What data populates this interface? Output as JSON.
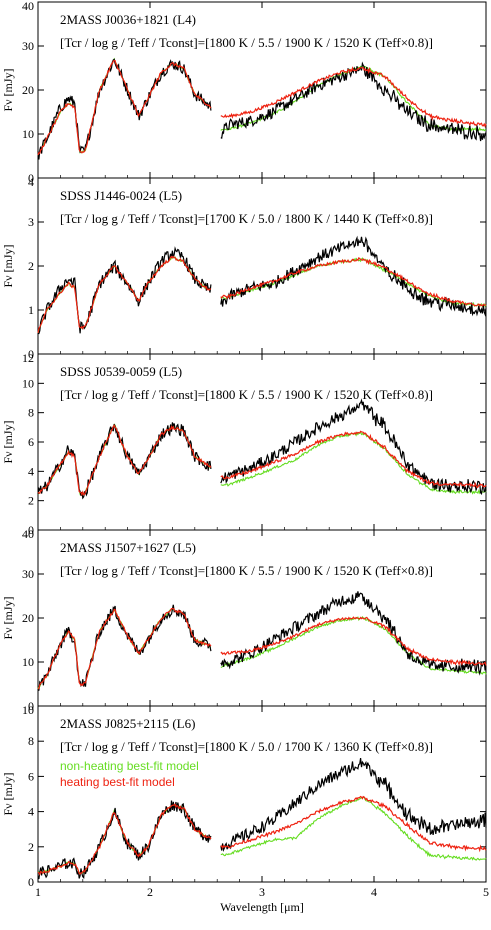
{
  "chart_data": {
    "type": "line",
    "xlabel": "Wavelength [μm]",
    "ylabel": "Fν [mJy]",
    "xlim": [
      1,
      5
    ],
    "xticks": [
      1,
      2,
      3,
      4,
      5
    ],
    "colors": {
      "observed": "#000000",
      "non_heating": "#66dd22",
      "heating": "#ee2211"
    },
    "legend": {
      "non_heating": "non-heating best-fit model",
      "heating": "heating best-fit model",
      "placement": "upper-left of bottom panel"
    },
    "panels": [
      {
        "object": "2MASS J0036+1821 (L4)",
        "param_prefix": "[Tcr / log g / Teff / Tconst]=",
        "param_values": "[1800 K / 5.5 / 1900 K / 1520 K (Teff×0.8)]",
        "ylim": [
          0,
          40
        ],
        "yticks": [
          0,
          10,
          20,
          30,
          40
        ],
        "obs_scale": 1.0,
        "nh_scale": 1.0,
        "h_scale": 1.0,
        "anchors": {
          "x": [
            1.0,
            1.08,
            1.2,
            1.27,
            1.33,
            1.37,
            1.42,
            1.55,
            1.68,
            1.8,
            1.9,
            1.98,
            2.1,
            2.2,
            2.3,
            2.4,
            2.5,
            2.6,
            2.63,
            2.7,
            2.9,
            3.1,
            3.3,
            3.5,
            3.7,
            3.9,
            4.1,
            4.3,
            4.5,
            4.7,
            5.0
          ],
          "obs": [
            5,
            9,
            16,
            18,
            17,
            6,
            6,
            20,
            27,
            20,
            14,
            18,
            24,
            26,
            25,
            19,
            17,
            15,
            10,
            12,
            13,
            15,
            18,
            21,
            23,
            25,
            20,
            15,
            12,
            11,
            10
          ],
          "nh": [
            5,
            9,
            15,
            17,
            16,
            6,
            6,
            20,
            27,
            20,
            14,
            18,
            24,
            26,
            25,
            19,
            17,
            15,
            11,
            11,
            12.5,
            14.5,
            17.5,
            21,
            23.5,
            25.5,
            23,
            17,
            12,
            11,
            11
          ],
          "h": [
            5,
            9,
            15,
            17,
            16,
            6,
            6,
            20,
            27,
            20,
            14,
            18,
            24,
            26,
            25,
            19,
            17,
            15,
            14,
            14,
            15,
            17,
            19.5,
            22,
            24,
            25,
            23,
            18,
            14,
            13,
            12
          ]
        }
      },
      {
        "object": "SDSS J1446-0024 (L5)",
        "param_prefix": "[Tcr / log g / Teff / Tconst]=",
        "param_values": "[1700 K / 5.0 / 1800 K / 1440 K (Teff×0.8)]",
        "ylim": [
          0,
          4
        ],
        "yticks": [
          0,
          1,
          2,
          3,
          4
        ],
        "obs_scale": 0.09,
        "nh_scale": 0.086,
        "h_scale": 0.086,
        "anchors": {
          "x": [
            1.0,
            1.08,
            1.2,
            1.27,
            1.33,
            1.37,
            1.42,
            1.55,
            1.68,
            1.8,
            1.9,
            1.98,
            2.1,
            2.2,
            2.3,
            2.4,
            2.5,
            2.6,
            2.63,
            2.7,
            2.9,
            3.1,
            3.3,
            3.5,
            3.7,
            3.9,
            4.1,
            4.3,
            4.5,
            4.7,
            5.0
          ],
          "obs": [
            0.5,
            1.0,
            1.5,
            1.7,
            1.6,
            0.6,
            0.6,
            1.6,
            2.0,
            1.6,
            1.2,
            1.6,
            2.1,
            2.3,
            2.2,
            1.7,
            1.5,
            1.4,
            1.1,
            1.3,
            1.5,
            1.6,
            1.9,
            2.2,
            2.4,
            2.6,
            1.9,
            1.5,
            1.2,
            1.1,
            1.0
          ],
          "nh": [
            0.5,
            1.0,
            1.4,
            1.6,
            1.5,
            0.6,
            0.6,
            1.6,
            2.0,
            1.6,
            1.2,
            1.6,
            2.0,
            2.2,
            2.1,
            1.7,
            1.5,
            1.4,
            1.25,
            1.3,
            1.45,
            1.6,
            1.8,
            2.0,
            2.1,
            2.15,
            1.9,
            1.6,
            1.3,
            1.15,
            1.1
          ],
          "h": [
            0.5,
            1.0,
            1.4,
            1.6,
            1.5,
            0.6,
            0.6,
            1.6,
            2.0,
            1.6,
            1.2,
            1.6,
            2.0,
            2.2,
            2.1,
            1.7,
            1.5,
            1.4,
            1.3,
            1.3,
            1.5,
            1.65,
            1.85,
            2.0,
            2.1,
            2.15,
            1.95,
            1.65,
            1.35,
            1.2,
            1.1
          ]
        }
      },
      {
        "object": "SDSS J0539-0059 (L5)",
        "param_prefix": "[Tcr / log g / Teff / Tconst]=",
        "param_values": "[1800 K / 5.5 / 1900 K / 1520 K (Teff×0.8)]",
        "ylim": [
          0,
          12
        ],
        "yticks": [
          0,
          2,
          4,
          6,
          8,
          10,
          12
        ],
        "anchors": {
          "x": [
            1.0,
            1.08,
            1.2,
            1.27,
            1.33,
            1.37,
            1.42,
            1.55,
            1.68,
            1.8,
            1.9,
            1.98,
            2.1,
            2.2,
            2.3,
            2.4,
            2.5,
            2.6,
            2.63,
            2.7,
            2.9,
            3.1,
            3.3,
            3.5,
            3.7,
            3.9,
            4.1,
            4.3,
            4.5,
            4.7,
            5.0
          ],
          "obs": [
            2.5,
            3.0,
            4.5,
            5.5,
            5.0,
            2.5,
            2.5,
            5.0,
            7.2,
            5.0,
            3.8,
            4.8,
            6.5,
            7.0,
            6.8,
            5.0,
            4.5,
            4.0,
            3.4,
            3.7,
            4.2,
            5.0,
            6.0,
            7.0,
            7.8,
            8.5,
            7.0,
            4.5,
            3.2,
            3.0,
            3.0
          ],
          "nh": [
            2.5,
            3.0,
            4.5,
            5.3,
            5.0,
            2.5,
            2.5,
            5.0,
            7.2,
            5.0,
            3.8,
            4.8,
            6.5,
            7.0,
            6.8,
            5.0,
            4.5,
            4.0,
            3.0,
            3.1,
            3.6,
            4.2,
            4.8,
            5.8,
            6.4,
            6.6,
            5.5,
            3.8,
            2.8,
            2.6,
            2.6
          ],
          "h": [
            2.5,
            3.0,
            4.5,
            5.3,
            5.0,
            2.5,
            2.5,
            5.0,
            7.2,
            5.0,
            3.8,
            4.8,
            6.5,
            7.0,
            6.8,
            5.0,
            4.5,
            4.0,
            3.6,
            3.6,
            4.0,
            4.6,
            5.2,
            6.0,
            6.5,
            6.7,
            5.6,
            4.0,
            3.2,
            3.1,
            3.0
          ]
        }
      },
      {
        "object": "2MASS J1507+1627 (L5)",
        "param_prefix": "[Tcr / log g / Teff / Tconst]=",
        "param_values": "[1800 K / 5.5 / 1900 K / 1520 K (Teff×0.8)]",
        "ylim": [
          0,
          40
        ],
        "yticks": [
          0,
          10,
          20,
          30,
          40
        ],
        "anchors": {
          "x": [
            1.0,
            1.08,
            1.2,
            1.27,
            1.33,
            1.37,
            1.42,
            1.55,
            1.68,
            1.8,
            1.9,
            1.98,
            2.1,
            2.2,
            2.3,
            2.4,
            2.5,
            2.6,
            2.63,
            2.7,
            2.9,
            3.1,
            3.3,
            3.5,
            3.7,
            3.9,
            4.1,
            4.3,
            4.5,
            4.7,
            5.0
          ],
          "obs": [
            4,
            7,
            14,
            17,
            15,
            5,
            5,
            17,
            22,
            16,
            12,
            15,
            20,
            22,
            21,
            15,
            14,
            13,
            10,
            10,
            12,
            15,
            18,
            21,
            24,
            25,
            20,
            12,
            9,
            9,
            9
          ],
          "nh": [
            4,
            7,
            14,
            17,
            15,
            5,
            5,
            17,
            22,
            16,
            12,
            15,
            20,
            22,
            21,
            15,
            14,
            13,
            9,
            9.5,
            11,
            13,
            15.5,
            18,
            19.5,
            20,
            17.5,
            12,
            8.5,
            8,
            7.5
          ],
          "h": [
            4,
            7,
            14,
            17,
            15,
            5,
            5,
            17,
            22,
            16,
            12,
            15,
            20,
            22,
            21,
            15,
            14,
            13,
            12,
            12,
            12.5,
            14,
            16,
            18.5,
            19.8,
            20,
            18,
            13,
            10.5,
            10,
            9.5
          ]
        }
      },
      {
        "object": "2MASS J0825+2115 (L6)",
        "param_prefix": "[Tcr / log g / Teff / Tconst]=",
        "param_values": "[1800 K / 5.0 / 1700 K / 1360 K (Teff×0.8)]",
        "ylim": [
          0,
          10
        ],
        "yticks": [
          0,
          2,
          4,
          6,
          8,
          10
        ],
        "anchors": {
          "x": [
            1.0,
            1.08,
            1.2,
            1.27,
            1.33,
            1.37,
            1.42,
            1.55,
            1.68,
            1.8,
            1.9,
            1.98,
            2.1,
            2.2,
            2.3,
            2.4,
            2.5,
            2.6,
            2.63,
            2.7,
            2.9,
            3.1,
            3.3,
            3.5,
            3.7,
            3.9,
            4.1,
            4.3,
            4.5,
            4.7,
            5.0
          ],
          "obs": [
            0.5,
            0.6,
            0.9,
            1.1,
            1.0,
            0.5,
            0.6,
            2.0,
            4.0,
            2.2,
            1.5,
            2.0,
            3.8,
            4.4,
            4.2,
            3.0,
            2.6,
            2.4,
            2.0,
            2.2,
            2.8,
            3.5,
            4.5,
            5.5,
            6.2,
            6.8,
            5.5,
            3.8,
            3.0,
            3.2,
            3.5
          ],
          "nh": [
            0.5,
            0.6,
            0.9,
            1.1,
            1.0,
            0.5,
            0.6,
            2.0,
            4.0,
            2.2,
            1.5,
            2.0,
            3.8,
            4.4,
            4.2,
            3.0,
            2.6,
            2.4,
            1.5,
            1.6,
            2.0,
            2.4,
            2.5,
            3.6,
            4.3,
            4.8,
            3.9,
            2.6,
            1.5,
            1.4,
            1.3
          ],
          "h": [
            0.5,
            0.6,
            0.9,
            1.1,
            1.0,
            0.5,
            0.6,
            2.0,
            4.0,
            2.2,
            1.5,
            2.0,
            3.8,
            4.4,
            4.2,
            3.0,
            2.6,
            2.4,
            2.0,
            2.0,
            2.4,
            2.8,
            3.3,
            4.0,
            4.5,
            4.8,
            4.3,
            3.2,
            2.2,
            2.0,
            1.9
          ]
        }
      }
    ]
  }
}
